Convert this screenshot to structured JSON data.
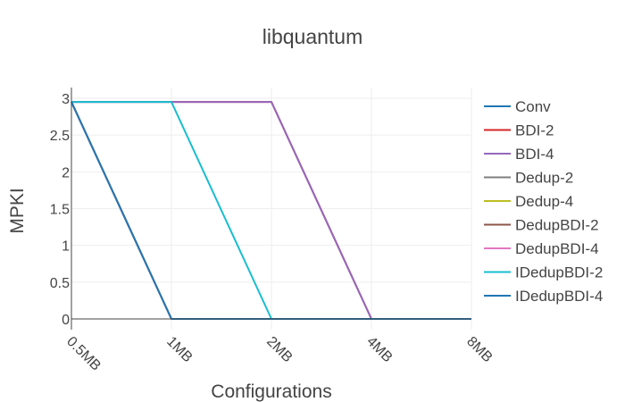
{
  "chart_data": {
    "type": "line",
    "title": "libquantum",
    "xlabel": "Configurations",
    "ylabel": "MPKI",
    "x": [
      "0.5MB",
      "1MB",
      "2MB",
      "4MB",
      "8MB"
    ],
    "ylim": [
      0,
      3
    ],
    "yticks": [
      "0",
      "0.5",
      "1",
      "1.5",
      "2",
      "2.5",
      "3"
    ],
    "grid": true,
    "legend_position": "right",
    "series": [
      {
        "name": "Conv",
        "color": "#1f77b4",
        "values": [
          2.95,
          0.0,
          0.0,
          0.0,
          0.0
        ]
      },
      {
        "name": "BDI-2",
        "color": "#d62728",
        "values": [
          2.95,
          2.95,
          2.95,
          0.0,
          0.0
        ]
      },
      {
        "name": "BDI-4",
        "color": "#9467bd",
        "values": [
          2.95,
          2.95,
          2.95,
          0.0,
          0.0
        ]
      },
      {
        "name": "Dedup-2",
        "color": "#7f7f7f",
        "values": [
          2.95,
          0.0,
          0.0,
          0.0,
          0.0
        ]
      },
      {
        "name": "Dedup-4",
        "color": "#bcbd22",
        "values": [
          2.95,
          0.0,
          0.0,
          0.0,
          0.0
        ]
      },
      {
        "name": "DedupBDI-2",
        "color": "#8c564b",
        "values": [
          2.95,
          0.0,
          0.0,
          0.0,
          0.0
        ]
      },
      {
        "name": "DedupBDI-4",
        "color": "#e377c2",
        "values": [
          2.95,
          0.0,
          0.0,
          0.0,
          0.0
        ]
      },
      {
        "name": "IDedupBDI-2",
        "color": "#17becf",
        "values": [
          2.95,
          2.95,
          0.0,
          0.0,
          0.0
        ]
      },
      {
        "name": "IDedupBDI-4",
        "color": "#1f77b4",
        "values": [
          2.95,
          0.0,
          0.0,
          0.0,
          0.0
        ]
      }
    ]
  }
}
